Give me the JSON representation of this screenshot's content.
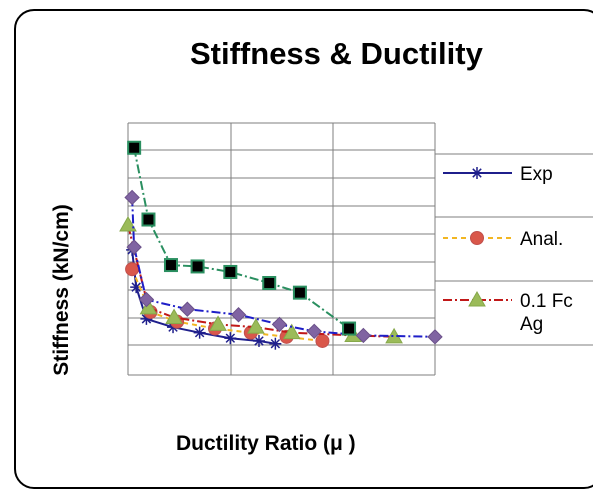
{
  "chart_data": {
    "type": "line",
    "title": "Stiffness & Ductility",
    "xlabel": "Ductility Ratio (μ )",
    "ylabel": "Stiffness (kN/cm)",
    "xlim": [
      0,
      3
    ],
    "ylim": [
      0,
      1
    ],
    "grid": true,
    "legend": "right",
    "series": [
      {
        "name": "Exp",
        "color": "#1f1f8c",
        "marker": "star",
        "dash": "solid",
        "points": [
          [
            0.04,
            0.74
          ],
          [
            0.08,
            0.47
          ],
          [
            0.18,
            0.24
          ],
          [
            0.44,
            0.18
          ],
          [
            0.7,
            0.14
          ],
          [
            1.0,
            0.1
          ],
          [
            1.28,
            0.08
          ],
          [
            1.44,
            0.06
          ]
        ]
      },
      {
        "name": "Anal.",
        "color": "#f2b622",
        "marker": "circle",
        "dash": "dash",
        "points": [
          [
            0.04,
            0.6
          ],
          [
            0.22,
            0.29
          ],
          [
            0.48,
            0.22
          ],
          [
            0.85,
            0.17
          ],
          [
            1.2,
            0.14
          ],
          [
            1.55,
            0.11
          ],
          [
            1.9,
            0.08
          ]
        ]
      },
      {
        "name": "0.1 Fc Ag",
        "color": "#c11818",
        "marker": "triangle",
        "dash": "dashdot",
        "points": [
          [
            0.0,
            0.92
          ],
          [
            0.2,
            0.32
          ],
          [
            0.45,
            0.25
          ],
          [
            0.88,
            0.2
          ],
          [
            1.25,
            0.18
          ],
          [
            1.6,
            0.14
          ],
          [
            2.2,
            0.12
          ],
          [
            2.6,
            0.11
          ]
        ]
      },
      {
        "name": "",
        "color": "#1e1ec8",
        "marker": "diamond",
        "dash": "dashdot",
        "markerColor": "#8064a2",
        "points": [
          [
            0.04,
            1.12
          ],
          [
            0.06,
            0.76
          ],
          [
            0.18,
            0.38
          ],
          [
            0.58,
            0.31
          ],
          [
            1.08,
            0.27
          ],
          [
            1.48,
            0.2
          ],
          [
            1.82,
            0.15
          ],
          [
            2.3,
            0.12
          ],
          [
            3.0,
            0.11
          ]
        ]
      },
      {
        "name": "",
        "color": "#2a8f60",
        "marker": "square",
        "dash": "dashdot",
        "markerColor": "#000000",
        "markerStroke": "#2a8f60",
        "points": [
          [
            0.06,
            1.48
          ],
          [
            0.2,
            0.96
          ],
          [
            0.42,
            0.63
          ],
          [
            0.68,
            0.62
          ],
          [
            1.0,
            0.58
          ],
          [
            1.38,
            0.5
          ],
          [
            1.68,
            0.43
          ],
          [
            2.16,
            0.17
          ]
        ]
      }
    ]
  }
}
